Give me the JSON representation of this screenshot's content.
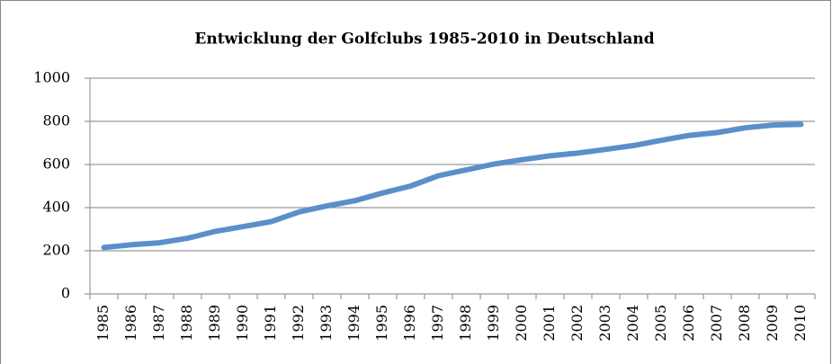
{
  "chart_data": {
    "type": "line",
    "title": "Entwicklung der Golfclubs 1985-2010 in Deutschland",
    "categories": [
      "1985",
      "1986",
      "1987",
      "1988",
      "1989",
      "1990",
      "1991",
      "1992",
      "1993",
      "1994",
      "1995",
      "1996",
      "1997",
      "1998",
      "1999",
      "2000",
      "2001",
      "2002",
      "2003",
      "2004",
      "2005",
      "2006",
      "2007",
      "2008",
      "2009",
      "2010"
    ],
    "values": [
      215,
      228,
      237,
      258,
      290,
      312,
      335,
      380,
      408,
      432,
      468,
      500,
      548,
      575,
      602,
      622,
      640,
      653,
      670,
      688,
      712,
      735,
      748,
      770,
      783,
      786
    ],
    "color": "#5b8fc9",
    "ylim": [
      0,
      1000
    ],
    "yticks": [
      0,
      200,
      400,
      600,
      800,
      1000
    ],
    "grid": true
  }
}
